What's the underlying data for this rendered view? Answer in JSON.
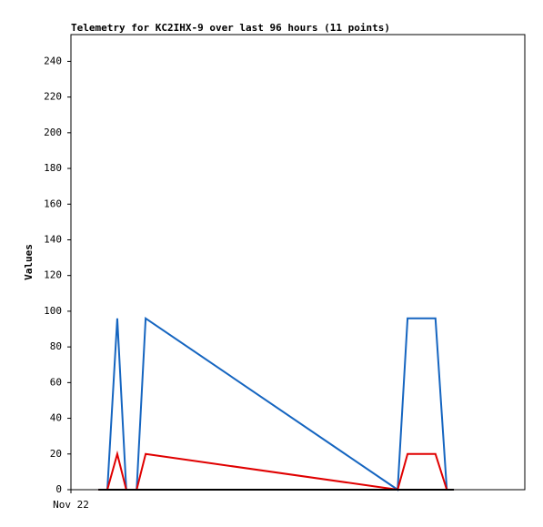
{
  "chart_data": {
    "type": "line",
    "title": "Telemetry for KC2IHX-9 over last 96 hours (11 points)",
    "y_label": "Values",
    "x": [
      5.8,
      7.7,
      9.8,
      11.7,
      13.9,
      15.8,
      69.1,
      71.2,
      77.1,
      79.5,
      81
    ],
    "xlim": [
      0,
      96
    ],
    "xticks": [
      {
        "value": 0,
        "label": "Nov 22"
      }
    ],
    "ylim": [
      0,
      255
    ],
    "yticks": [
      0,
      20,
      40,
      60,
      80,
      100,
      120,
      140,
      160,
      180,
      200,
      220,
      240
    ],
    "series": [
      {
        "color": "#1565c0",
        "values": [
          0,
          0,
          96,
          0,
          0,
          96,
          0,
          96,
          96,
          0,
          0
        ]
      },
      {
        "color": "#e00000",
        "values": [
          0,
          0,
          20,
          0,
          0,
          20,
          0,
          20,
          20,
          0,
          0
        ]
      },
      {
        "color": "#000000",
        "values": [
          0,
          0,
          0,
          0,
          0,
          0,
          0,
          0,
          0,
          0,
          0
        ]
      }
    ]
  }
}
